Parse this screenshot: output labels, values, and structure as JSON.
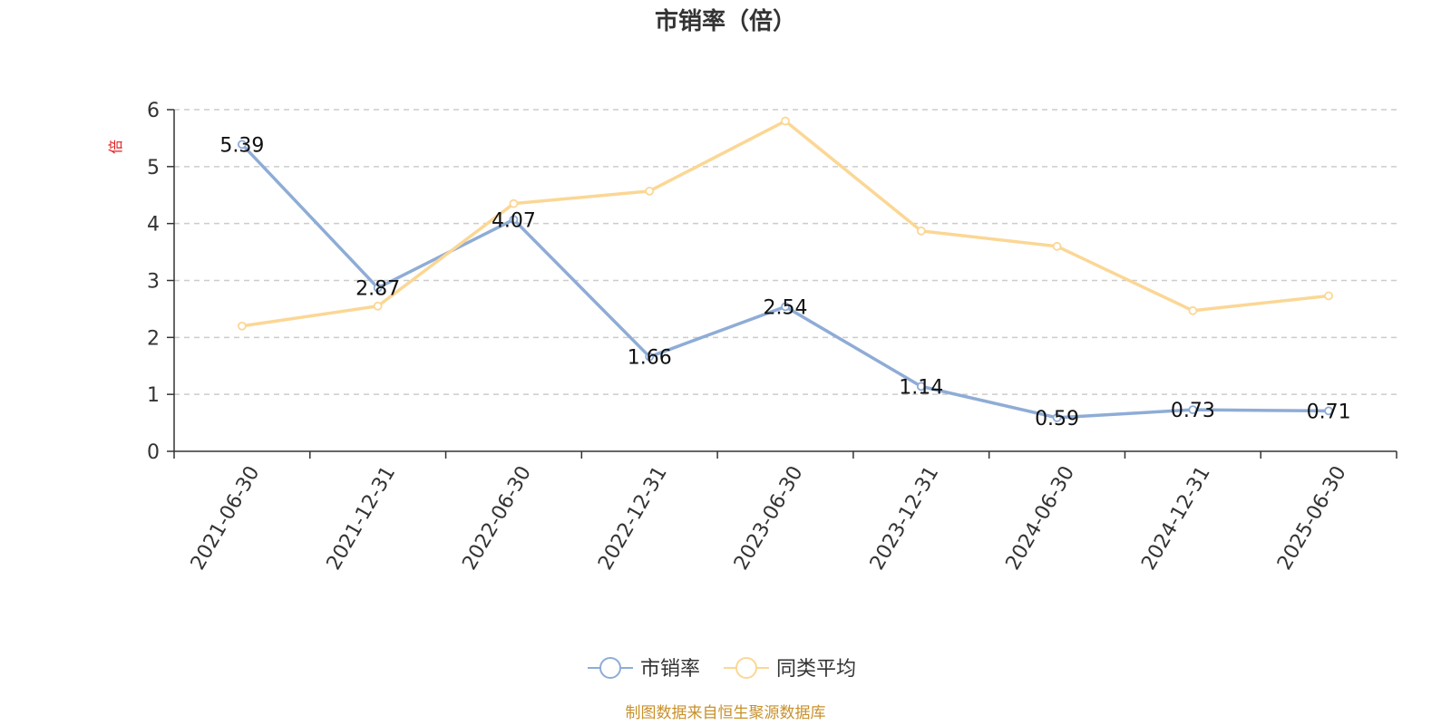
{
  "chart_data": {
    "type": "line",
    "title": "市销率（倍）",
    "unit_label": "倍",
    "categories": [
      "2021-06-30",
      "2021-12-31",
      "2022-06-30",
      "2022-12-31",
      "2023-06-30",
      "2023-12-31",
      "2024-06-30",
      "2024-12-31",
      "2025-06-30"
    ],
    "series": [
      {
        "name": "市销率",
        "color": "#8eacd6",
        "values": [
          5.39,
          2.87,
          4.07,
          1.66,
          2.54,
          1.14,
          0.59,
          0.73,
          0.71
        ],
        "labels": [
          "5.39",
          "2.87",
          "4.07",
          "1.66",
          "2.54",
          "1.14",
          "0.59",
          "0.73",
          "0.71"
        ]
      },
      {
        "name": "同类平均",
        "color": "#fbd795",
        "values": [
          2.2,
          2.55,
          4.35,
          4.57,
          5.8,
          3.87,
          3.6,
          2.47,
          2.73
        ]
      }
    ],
    "ylim": [
      0,
      6
    ],
    "yticks": [
      "0",
      "1",
      "2",
      "3",
      "4",
      "5",
      "6"
    ],
    "grid": true,
    "legend_position": "bottom"
  },
  "source_text": "制图数据来自恒生聚源数据库"
}
